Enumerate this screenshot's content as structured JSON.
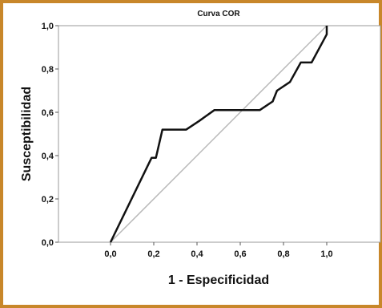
{
  "chart_data": {
    "type": "line",
    "title": "Curva COR",
    "xlabel": "1 - Especificidad",
    "ylabel": "Susceptibilidad",
    "xlim": [
      0,
      1
    ],
    "ylim": [
      0,
      1
    ],
    "x_ticks": [
      "0,0",
      "0,2",
      "0,4",
      "0,6",
      "0,8",
      "1,0"
    ],
    "y_ticks": [
      "0,0",
      "0,2",
      "0,4",
      "0,6",
      "0,8",
      "1,0"
    ],
    "grid": false,
    "legend": "none",
    "series": [
      {
        "role": "roc-curve",
        "color": "#111111",
        "x": [
          0.0,
          0.19,
          0.21,
          0.24,
          0.35,
          0.41,
          0.48,
          0.69,
          0.75,
          0.77,
          0.83,
          0.88,
          0.93,
          1.0,
          1.0
        ],
        "y": [
          0.0,
          0.39,
          0.39,
          0.52,
          0.52,
          0.56,
          0.61,
          0.61,
          0.65,
          0.7,
          0.74,
          0.83,
          0.83,
          0.96,
          1.0
        ]
      },
      {
        "role": "reference-diagonal",
        "color": "#b8b8b8",
        "x": [
          0.0,
          1.0
        ],
        "y": [
          0.0,
          1.0
        ]
      }
    ]
  }
}
